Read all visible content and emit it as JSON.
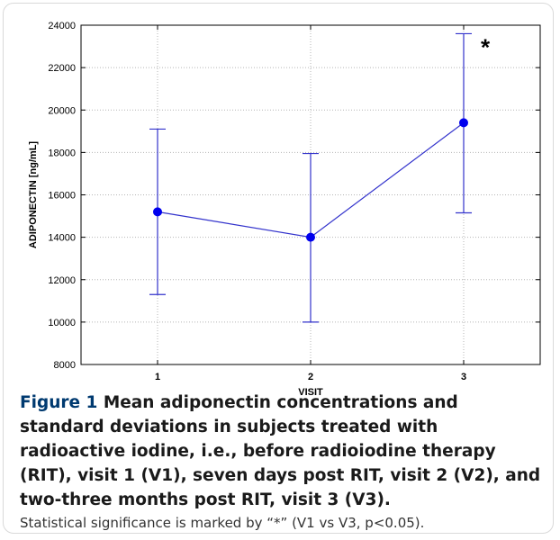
{
  "chart_data": {
    "type": "line",
    "xlabel": "VISIT",
    "ylabel": "ADIPONECTIN [ng/mL]",
    "categories": [
      "1",
      "2",
      "3"
    ],
    "ylim": [
      8000,
      24000
    ],
    "yticks": [
      8000,
      10000,
      12000,
      14000,
      16000,
      18000,
      20000,
      22000,
      24000
    ],
    "grid": "dotted",
    "series": [
      {
        "values": [
          15200,
          14000,
          19400
        ],
        "error_low": [
          11300,
          10000,
          15150
        ],
        "error_high": [
          19100,
          17950,
          23600
        ]
      }
    ],
    "annotation": "*",
    "colors": {
      "series": "#3333cc",
      "marker": "#0000ee"
    }
  },
  "caption": {
    "label": "Figure 1",
    "title": "Mean adiponectin concentrations and standard deviations in subjects treated with radioactive iodine, i.e., before radioiodine therapy (RIT), visit 1 (V1), seven days post RIT, visit 2 (V2), and two-three months post RIT, visit 3 (V3).",
    "note": "Statistical significance is marked by “*” (V1 vs V3, p<0.05)."
  }
}
